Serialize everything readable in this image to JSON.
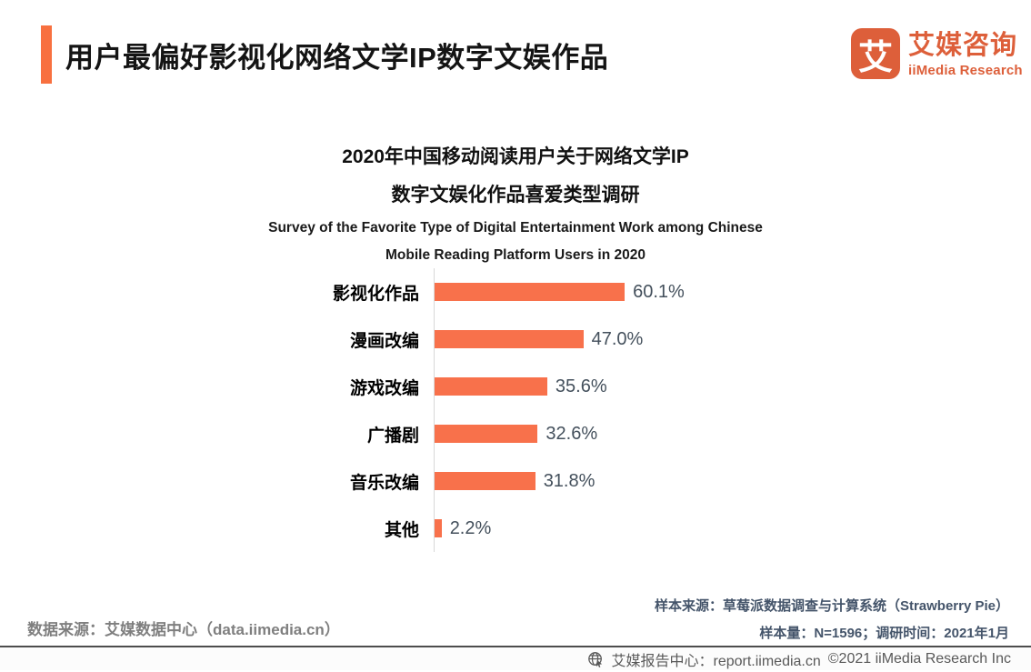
{
  "colors": {
    "accent_orange": "#F8703F",
    "logo_orange": "#DD5F3A",
    "bar_orange": "#F8714B",
    "value_text": "#44505C",
    "source_gray": "#7F7F7F",
    "sample_navy": "#44546A",
    "footer_gray": "#595959",
    "axis_gray": "#D9D9D9"
  },
  "header": {
    "title": "用户最偏好影视化网络文学IP数字文娱作品",
    "logo": {
      "glyph": "艾",
      "brand_cn": "艾媒咨询",
      "brand_en": "iiMedia Research"
    }
  },
  "chart_data": {
    "type": "bar",
    "orientation": "horizontal",
    "title_cn": [
      "2020年中国移动阅读用户关于网络文学IP",
      "数字文娱化作品喜爱类型调研"
    ],
    "title_en": [
      "Survey of the Favorite Type of Digital Entertainment Work among Chinese",
      "Mobile Reading Platform Users in 2020"
    ],
    "categories": [
      "影视化作品",
      "漫画改编",
      "游戏改编",
      "广播剧",
      "音乐改编",
      "其他"
    ],
    "values": [
      60.1,
      47.0,
      35.6,
      32.6,
      31.8,
      2.2
    ],
    "value_labels": [
      "60.1%",
      "47.0%",
      "35.6%",
      "32.6%",
      "31.8%",
      "2.2%"
    ],
    "bar_color": "#F8714B",
    "xlim": [
      0,
      65
    ],
    "grid": false,
    "legend": false,
    "value_label_position": "end-of-bar"
  },
  "footnotes": {
    "data_source": "数据来源：艾媒数据中心（data.iimedia.cn）",
    "sample_source": "样本来源：草莓派数据调查与计算系统（Strawberry Pie）",
    "sample_info": "样本量：N=1596；调研时间：2021年1月"
  },
  "footer": {
    "report_center": "艾媒报告中心：report.iimedia.cn",
    "copyright": "©2021  iiMedia Research Inc"
  }
}
